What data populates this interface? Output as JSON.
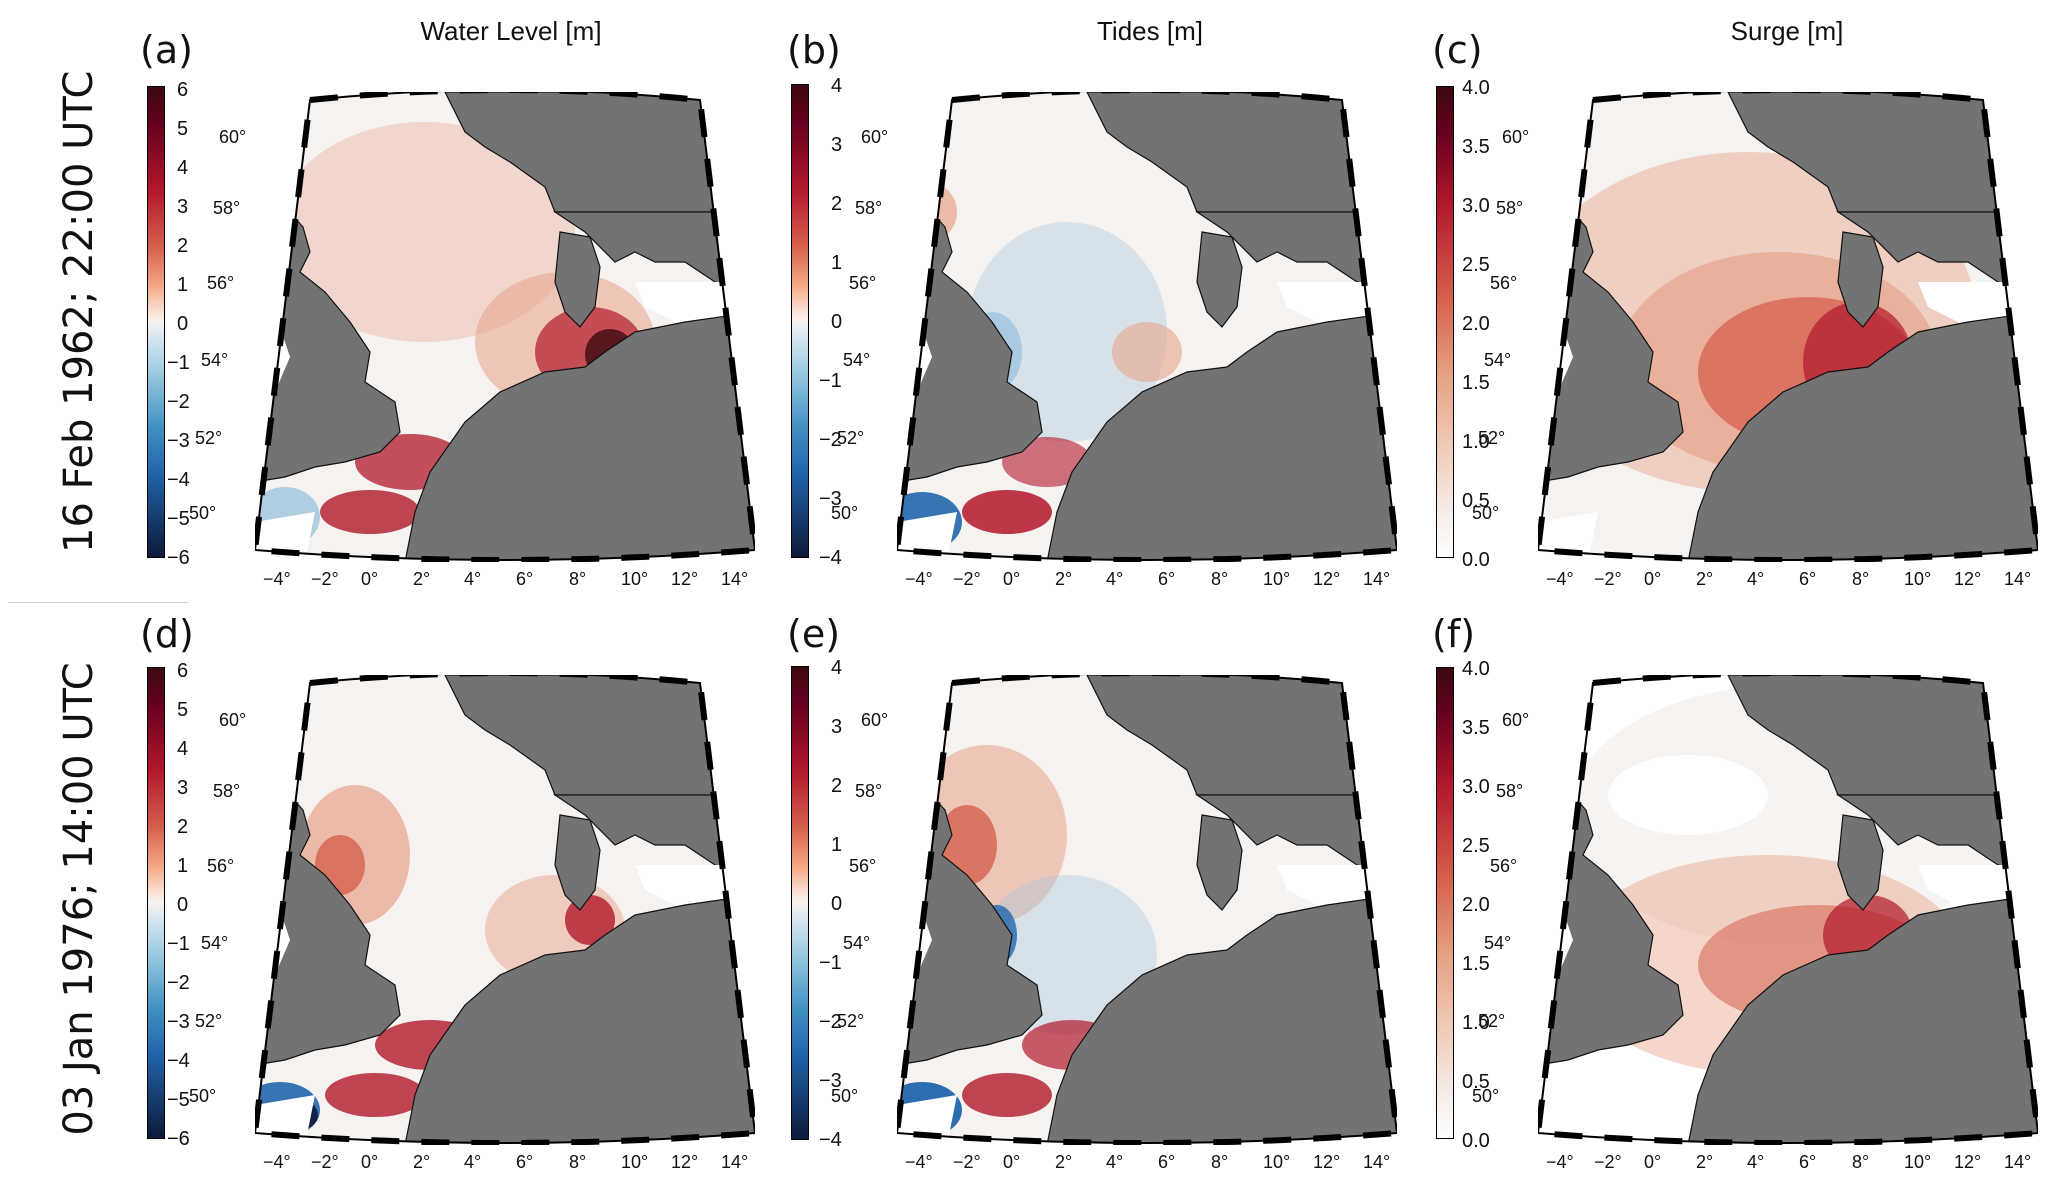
{
  "column_titles": [
    "Water Level [m]",
    "Tides [m]",
    "Surge [m]"
  ],
  "row_labels": [
    "16 Feb 1962; 22:00 UTC",
    "03 Jan 1976; 14:00 UTC"
  ],
  "panel_letters": [
    "(a)",
    "(b)",
    "(c)",
    "(d)",
    "(e)",
    "(f)"
  ],
  "colorbars": {
    "water_level": [
      "6",
      "5",
      "4",
      "3",
      "2",
      "1",
      "0",
      "−1",
      "−2",
      "−3",
      "−4",
      "−5",
      "−6"
    ],
    "tides": [
      "4",
      "3",
      "2",
      "1",
      "0",
      "−1",
      "−2",
      "−3",
      "−4"
    ],
    "surge": [
      "4.0",
      "3.5",
      "3.0",
      "2.5",
      "2.0",
      "1.5",
      "1.0",
      "0.5",
      "0.0"
    ]
  },
  "colors": {
    "diverging_top": "#3b0a0f",
    "diverging_high": "#b2182b",
    "diverging_mid_high": "#e7a38a",
    "diverging_zero": "#f5f2f0",
    "diverging_mid_low": "#9fc4de",
    "diverging_low": "#2166ac",
    "diverging_bottom": "#0d1a3a",
    "land": "#737373",
    "outside_domain": "#ffffff"
  },
  "lat_labels": [
    "60°",
    "58°",
    "56°",
    "54°",
    "52°",
    "50°"
  ],
  "lon_labels": [
    "−4°",
    "−2°",
    "0°",
    "2°",
    "4°",
    "6°",
    "8°",
    "10°",
    "12°",
    "14°"
  ]
}
